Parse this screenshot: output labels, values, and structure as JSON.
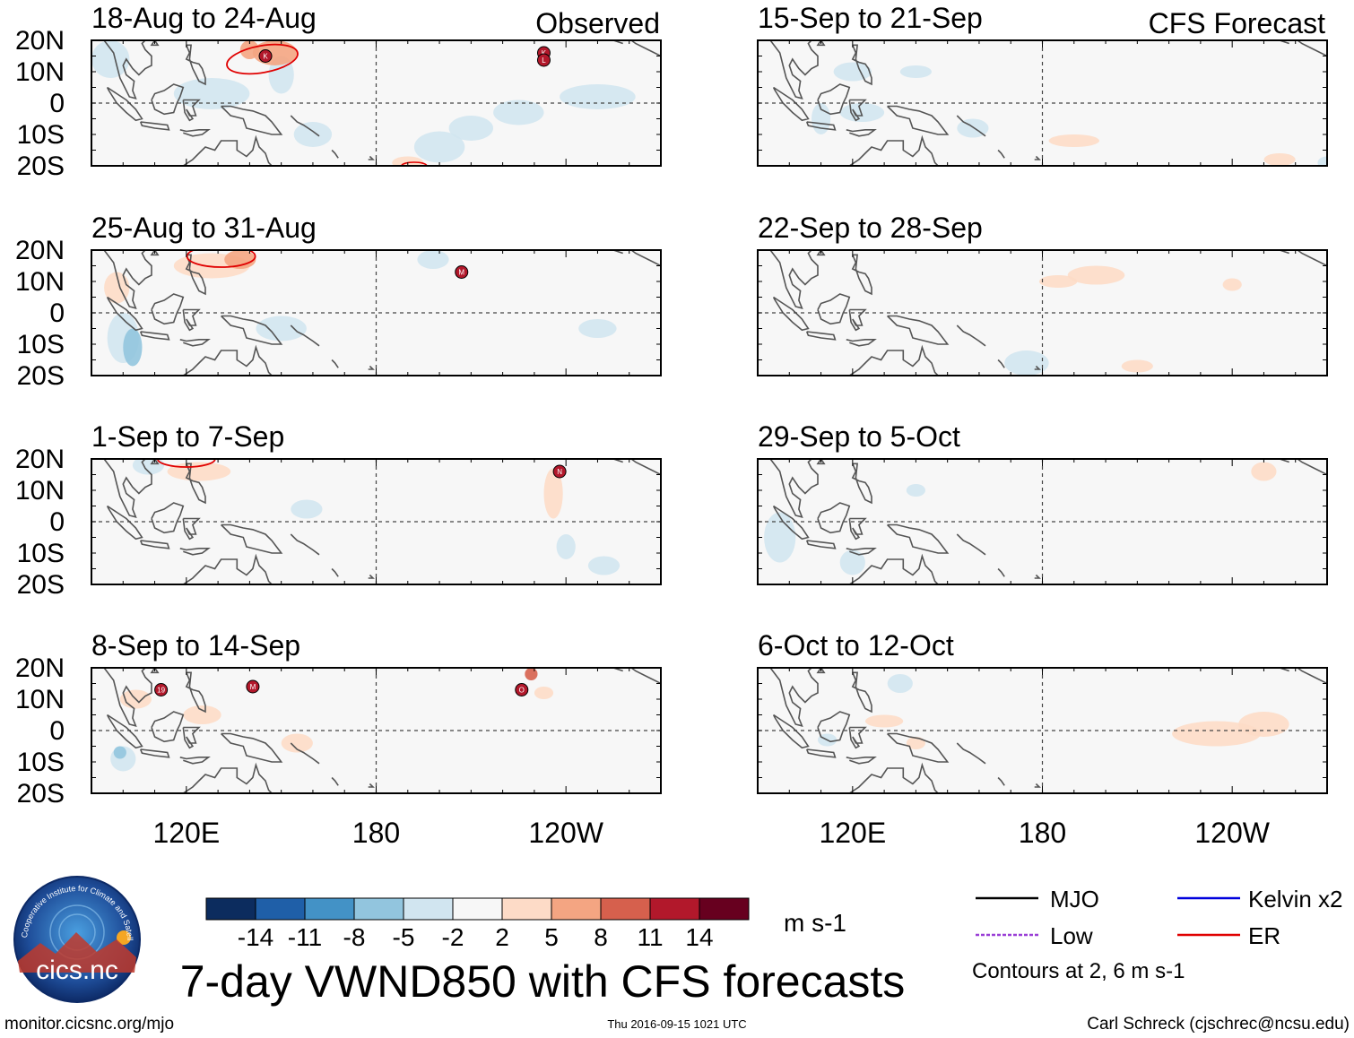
{
  "chart_data": {
    "type": "heatmap",
    "title": "7-day VWND850 with CFS forecasts",
    "units": "m s-1",
    "variable": "VWND850",
    "columns": [
      {
        "label": "Observed",
        "panels": [
          "18-Aug to 24-Aug",
          "25-Aug to 31-Aug",
          "1-Sep to 7-Sep",
          "8-Sep to 14-Sep"
        ]
      },
      {
        "label": "CFS Forecast",
        "panels": [
          "15-Sep to 21-Sep",
          "22-Sep to 28-Sep",
          "29-Sep to 5-Oct",
          "6-Oct to 12-Oct"
        ]
      }
    ],
    "lat_ticks": [
      "20N",
      "10N",
      "0",
      "10S",
      "20S"
    ],
    "lat_values": [
      20,
      10,
      0,
      -10,
      -20
    ],
    "lon_ticks": [
      "120E",
      "180",
      "120W"
    ],
    "lon_values": [
      120,
      180,
      240
    ],
    "lon_range": [
      90,
      270
    ],
    "lat_range": [
      -20,
      20
    ],
    "colorbar": {
      "levels": [
        "-14",
        "-11",
        "-8",
        "-5",
        "-2",
        "2",
        "5",
        "8",
        "11",
        "14"
      ],
      "colors": [
        "#0c2c5e",
        "#1f5fa8",
        "#4392c6",
        "#92c5de",
        "#d1e5f0",
        "#f7f7f7",
        "#fddbc7",
        "#f4a582",
        "#d6604d",
        "#b2182b",
        "#67001f"
      ]
    },
    "storm_markers": [
      {
        "panel": 0,
        "labels": [
          "K"
        ],
        "lon": 145,
        "lat": 15
      },
      {
        "panel": 0,
        "labels": [
          "K",
          "L"
        ],
        "lon": 233,
        "lat": 16
      },
      {
        "panel": 1,
        "labels": [
          "M"
        ],
        "lon": 207,
        "lat": 13
      },
      {
        "panel": 2,
        "labels": [
          "N"
        ],
        "lon": 238,
        "lat": 16
      },
      {
        "panel": 3,
        "labels": [
          "19"
        ],
        "lon": 112,
        "lat": 13
      },
      {
        "panel": 3,
        "labels": [
          "M"
        ],
        "lon": 141,
        "lat": 14
      },
      {
        "panel": 3,
        "labels": [
          "O"
        ],
        "lon": 226,
        "lat": 13
      }
    ]
  },
  "legend": {
    "lines": [
      {
        "label": "MJO",
        "color": "#000000"
      },
      {
        "label": "Kelvin x2",
        "color": "#0000dd"
      },
      {
        "label": "Low",
        "color": "#9a3fd6"
      },
      {
        "label": "ER",
        "color": "#e00000"
      }
    ],
    "contours_note": "Contours at 2, 6 m s-1"
  },
  "logo": {
    "text": "cics.nc",
    "ring_text": "Cooperative Institute for Climate and Satellites"
  },
  "footer": {
    "left": "monitor.cicsnc.org/mjo",
    "center": "Thu 2016-09-15 1021 UTC",
    "right": "Carl Schreck (cjschrec@ncsu.edu)"
  },
  "colors": {
    "ocean_bg": "#f7f7f7",
    "coast": "#555555"
  }
}
